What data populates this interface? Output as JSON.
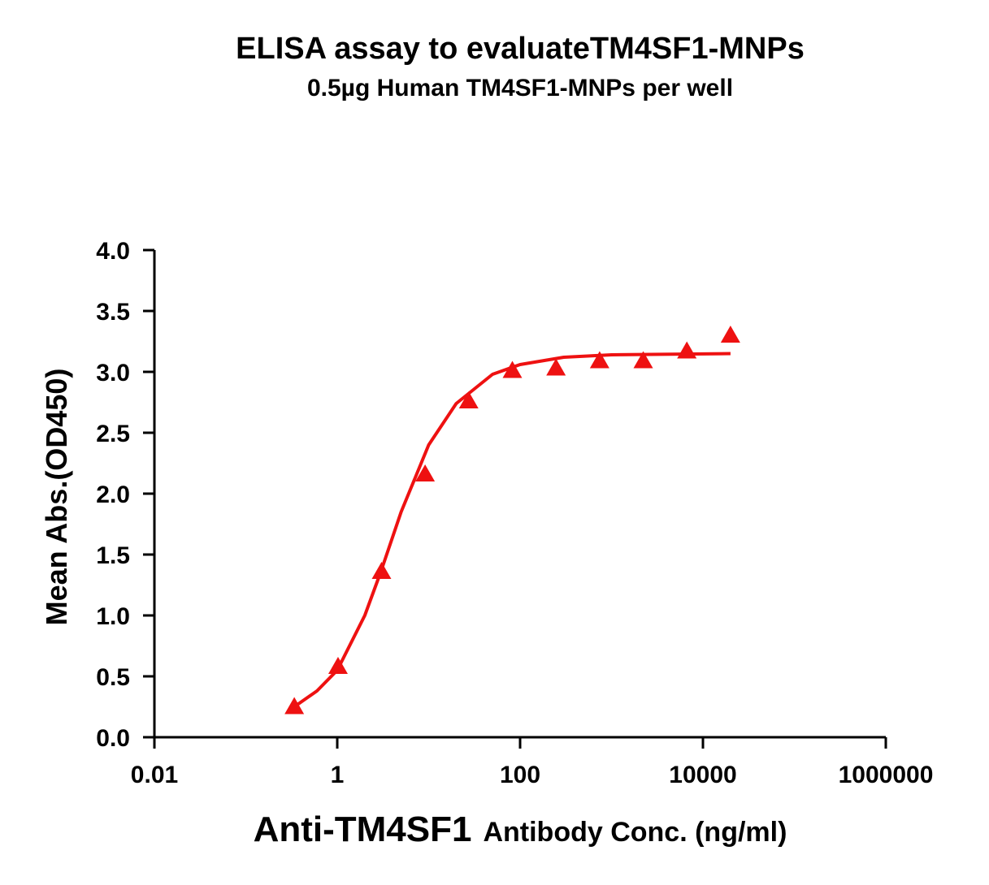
{
  "chart_data": {
    "type": "scatter",
    "title": "ELISA assay to evaluateTM4SF1-MNPs",
    "subtitle": "0.5µg Human TM4SF1-MNPs per well",
    "x_label_main": "Anti-TM4SF1",
    "x_label_rest": "Antibody Conc. (ng/ml)",
    "y_label": "Mean Abs.(OD450)",
    "x_scale": "log",
    "color": "#ee1111",
    "x": [
      0.339,
      1.02,
      3.05,
      9.14,
      27.4,
      82.3,
      247,
      741,
      2222,
      6667,
      20000
    ],
    "values": [
      0.25,
      0.58,
      1.36,
      2.16,
      2.76,
      3.01,
      3.03,
      3.09,
      3.09,
      3.17,
      3.3
    ],
    "fit": {
      "x": [
        0.339,
        0.6,
        1,
        2,
        3,
        5,
        10,
        20,
        50,
        100,
        300,
        1000,
        20000
      ],
      "values": [
        0.25,
        0.38,
        0.55,
        1.0,
        1.36,
        1.85,
        2.4,
        2.74,
        2.98,
        3.06,
        3.12,
        3.14,
        3.15
      ]
    },
    "xlim": [
      0.01,
      1000000
    ],
    "xticks": [
      0.01,
      1,
      100,
      10000,
      1000000
    ],
    "ylim": [
      0,
      4
    ],
    "yticks": [
      {
        "value": 0,
        "label": "0.0"
      },
      0.5,
      {
        "value": 1,
        "label": "1.0"
      },
      1.5,
      {
        "value": 2,
        "label": "2.0"
      },
      2.5,
      {
        "value": 3,
        "label": "3.0"
      },
      3.5,
      {
        "value": 4,
        "label": "4.0"
      }
    ]
  }
}
